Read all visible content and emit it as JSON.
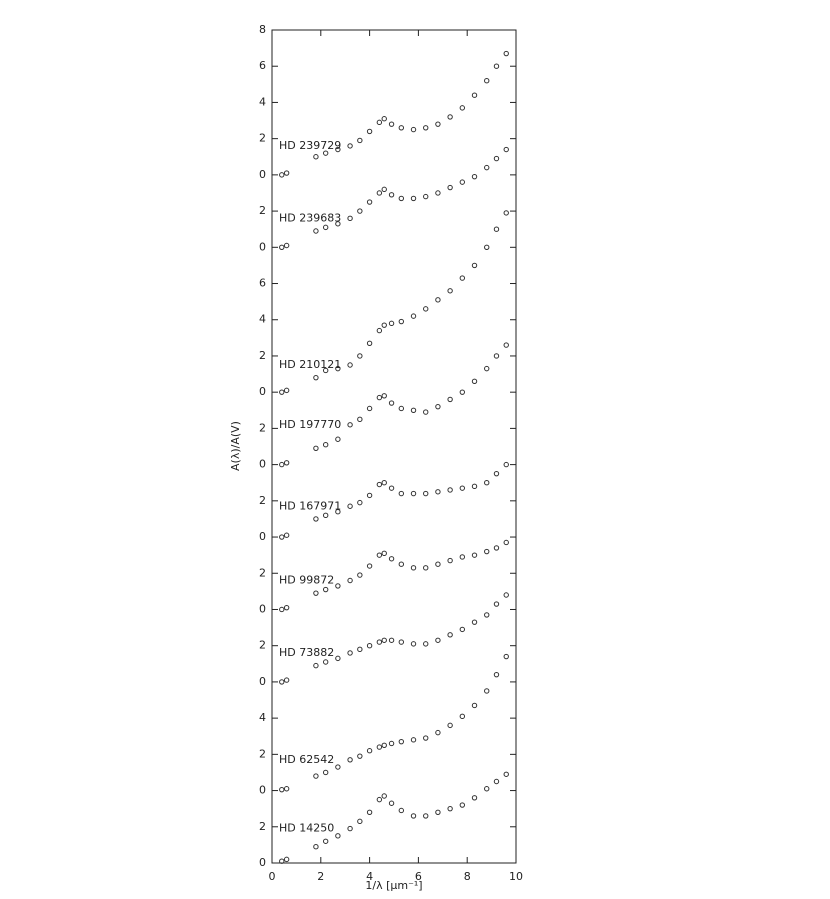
{
  "chart_data": {
    "type": "scatter",
    "xlabel": "1/λ [μm⁻¹]",
    "ylabel": "A(λ)/A(V)",
    "xlim": [
      0,
      10
    ],
    "xticks": [
      0,
      2,
      4,
      6,
      8,
      10
    ],
    "ylim": [
      0,
      46
    ],
    "yticks": [
      {
        "value": 0,
        "label": "0"
      },
      2,
      {
        "value": 4,
        "label": "0"
      },
      {
        "value": 6,
        "label": "2"
      },
      {
        "value": 8,
        "label": "4"
      },
      {
        "value": 10,
        "label": "0"
      },
      {
        "value": 12,
        "label": "2"
      },
      {
        "value": 14,
        "label": "0"
      },
      {
        "value": 16,
        "label": "2"
      },
      {
        "value": 18,
        "label": "0"
      },
      {
        "value": 20,
        "label": "2"
      },
      {
        "value": 22,
        "label": "0"
      },
      {
        "value": 24,
        "label": "2"
      },
      {
        "value": 26,
        "label": "0"
      },
      {
        "value": 28,
        "label": "2"
      },
      {
        "value": 30,
        "label": "4"
      },
      {
        "value": 32,
        "label": "6"
      },
      {
        "value": 34,
        "label": "0"
      },
      {
        "value": 36,
        "label": "2"
      },
      {
        "value": 38,
        "label": "0"
      },
      {
        "value": 40,
        "label": "2"
      },
      {
        "value": 42,
        "label": "4"
      },
      {
        "value": 44,
        "label": "6"
      },
      {
        "value": 46,
        "label": "8"
      }
    ],
    "marker_color": "#333333",
    "x": [
      0.4,
      0.6,
      1.8,
      2.2,
      2.7,
      3.2,
      3.6,
      4.0,
      4.4,
      4.6,
      4.9,
      5.3,
      5.8,
      6.3,
      6.8,
      7.3,
      7.8,
      8.3,
      8.8,
      9.2,
      9.6
    ],
    "series": [
      {
        "name": "HD 14250",
        "values": [
          0.1,
          0.2,
          0.9,
          1.2,
          1.5,
          1.9,
          2.3,
          2.8,
          3.5,
          3.7,
          3.3,
          2.9,
          2.6,
          2.6,
          2.8,
          3.0,
          3.2,
          3.6,
          4.1,
          4.5,
          4.9
        ]
      },
      {
        "name": "HD 62542",
        "values": [
          4.05,
          4.1,
          4.8,
          5.0,
          5.3,
          5.7,
          5.9,
          6.2,
          6.4,
          6.5,
          6.6,
          6.7,
          6.8,
          6.9,
          7.2,
          7.6,
          8.1,
          8.7,
          9.5,
          10.4,
          11.4
        ]
      },
      {
        "name": "HD 73882",
        "values": [
          10.0,
          10.1,
          10.9,
          11.1,
          11.3,
          11.6,
          11.8,
          12.0,
          12.2,
          12.3,
          12.3,
          12.2,
          12.1,
          12.1,
          12.3,
          12.6,
          12.9,
          13.3,
          13.7,
          14.3,
          14.8
        ]
      },
      {
        "name": "HD 99872",
        "values": [
          14.0,
          14.1,
          14.9,
          15.1,
          15.3,
          15.6,
          15.9,
          16.4,
          17.0,
          17.1,
          16.8,
          16.5,
          16.3,
          16.3,
          16.5,
          16.7,
          16.9,
          17.0,
          17.2,
          17.4,
          17.7
        ]
      },
      {
        "name": "HD 167971",
        "values": [
          18.0,
          18.1,
          19.0,
          19.2,
          19.4,
          19.7,
          19.9,
          20.3,
          20.9,
          21.0,
          20.7,
          20.4,
          20.4,
          20.4,
          20.5,
          20.6,
          20.7,
          20.8,
          21.0,
          21.5,
          22.0
        ]
      },
      {
        "name": "HD 197770",
        "values": [
          22.0,
          22.1,
          22.9,
          23.1,
          23.4,
          24.2,
          24.5,
          25.1,
          25.7,
          25.8,
          25.4,
          25.1,
          25.0,
          24.9,
          25.2,
          25.6,
          26.0,
          26.6,
          27.3,
          28.0,
          28.6
        ]
      },
      {
        "name": "HD 210121",
        "values": [
          26.0,
          26.1,
          26.8,
          27.2,
          27.3,
          27.5,
          28.0,
          28.7,
          29.4,
          29.7,
          29.8,
          29.9,
          30.2,
          30.6,
          31.1,
          31.6,
          32.3,
          33.0,
          34.0,
          35.0,
          35.9
        ]
      },
      {
        "name": "HD 239683",
        "values": [
          34.0,
          34.1,
          34.9,
          35.1,
          35.3,
          35.6,
          36.0,
          36.5,
          37.0,
          37.2,
          36.9,
          36.7,
          36.7,
          36.8,
          37.0,
          37.3,
          37.6,
          37.9,
          38.4,
          38.9,
          39.4
        ]
      },
      {
        "name": "HD 239729",
        "values": [
          38.0,
          38.1,
          39.0,
          39.2,
          39.4,
          39.6,
          39.9,
          40.4,
          40.9,
          41.1,
          40.8,
          40.6,
          40.5,
          40.6,
          40.8,
          41.2,
          41.7,
          42.4,
          43.2,
          44.0,
          44.7
        ]
      }
    ]
  }
}
